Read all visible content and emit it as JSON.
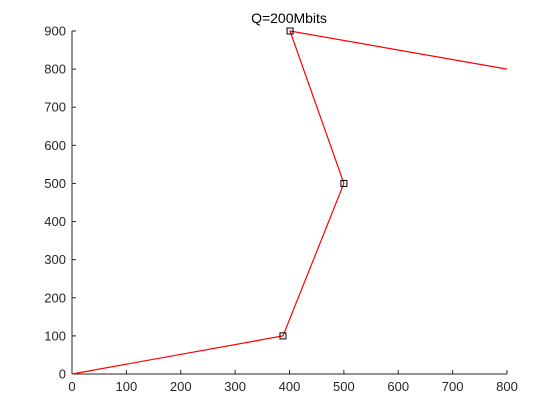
{
  "chart_data": {
    "type": "line",
    "title": "Q=200Mbits",
    "xlabel": "",
    "ylabel": "",
    "xlim": [
      0,
      800
    ],
    "ylim": [
      0,
      900
    ],
    "xticks": [
      0,
      100,
      200,
      300,
      400,
      500,
      600,
      700,
      800
    ],
    "yticks": [
      0,
      100,
      200,
      300,
      400,
      500,
      600,
      700,
      800,
      900
    ],
    "grid": false,
    "series": [
      {
        "color": "#ff0000",
        "points": [
          [
            0,
            0
          ],
          [
            388,
            100
          ],
          [
            500,
            500
          ],
          [
            401,
            900
          ],
          [
            800,
            800
          ]
        ]
      }
    ],
    "markers": {
      "shape": "square",
      "color": "#000000",
      "points": [
        [
          388,
          100
        ],
        [
          500,
          500
        ],
        [
          401,
          900
        ]
      ]
    }
  }
}
